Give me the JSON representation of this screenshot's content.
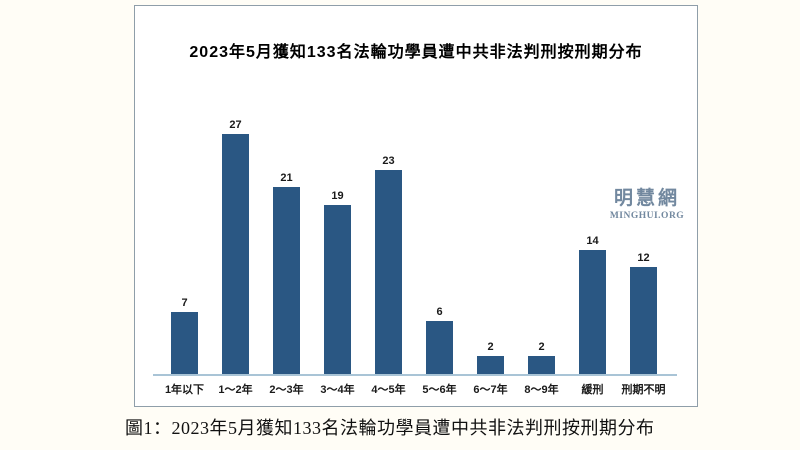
{
  "page": {
    "background_color": "#FFFDF6"
  },
  "chart_data": {
    "type": "bar",
    "title": "2023年5月獲知133名法輪功學員遭中共非法判刑按刑期分布",
    "categories": [
      "1年以下",
      "1～2年",
      "2～3年",
      "3～4年",
      "4～5年",
      "5～6年",
      "6～7年",
      "8～9年",
      "緩刑",
      "刑期不明"
    ],
    "values": [
      7,
      27,
      21,
      19,
      23,
      6,
      2,
      2,
      14,
      12
    ],
    "xlabel": "",
    "ylabel": "",
    "ylim": [
      0,
      28
    ],
    "grid": false,
    "legend": false,
    "value_labels_shown": true,
    "bar_color": "#2A5783",
    "axis_color": "#A9C4D6",
    "value_label_color": "#1A1A1A"
  },
  "watermark": {
    "cjk": "明慧網",
    "latin": "MINGHUI.ORG",
    "color": "#72889F"
  },
  "figure": {
    "caption": "圖1：2023年5月獲知133名法輪功學員遭中共非法判刑按刑期分布"
  }
}
